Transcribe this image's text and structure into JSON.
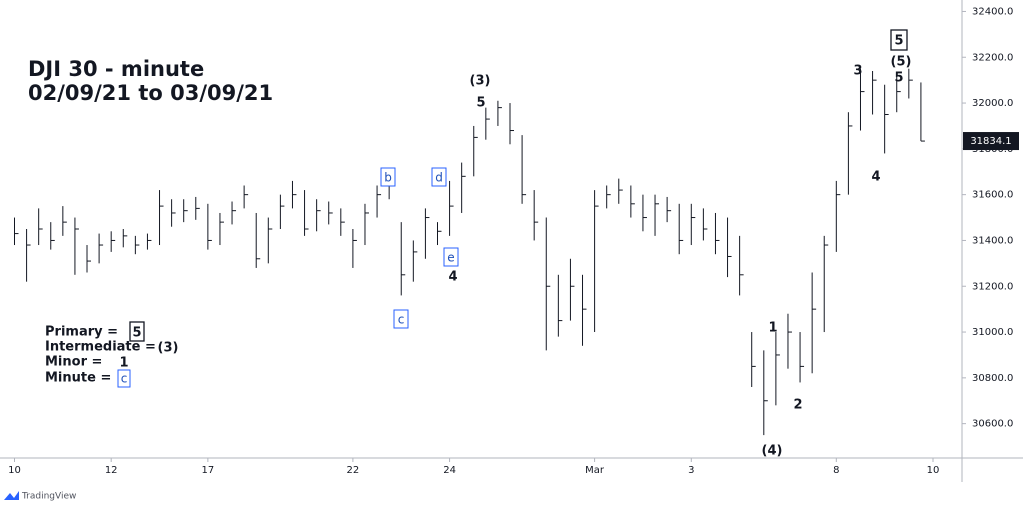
{
  "chart_data": {
    "type": "ohlc",
    "title": "DJI 30 - minute",
    "subtitle": "02/09/21 to 03/09/21",
    "color": "#131722",
    "x": [
      0,
      0.25,
      0.5,
      0.75,
      1,
      1.25,
      1.5,
      1.75,
      2,
      2.25,
      2.5,
      2.75,
      3,
      3.25,
      3.5,
      3.75,
      4,
      4.25,
      4.5,
      4.75,
      5,
      5.25,
      5.5,
      5.75,
      6,
      6.25,
      6.5,
      6.75,
      7,
      7.25,
      7.5,
      7.75,
      8,
      8.25,
      8.5,
      8.75,
      9,
      9.25,
      9.5,
      9.75,
      10,
      10.25,
      10.5,
      10.75,
      11,
      11.25,
      11.5,
      11.75,
      12,
      12.25,
      12.5,
      12.75,
      13,
      13.25,
      13.5,
      13.75,
      14,
      14.25,
      14.5,
      14.75,
      15,
      15.25,
      15.5,
      15.75,
      16,
      16.25,
      16.5,
      16.75,
      17,
      17.25,
      17.5,
      17.75,
      18,
      18.25,
      18.5,
      18.75
    ],
    "high": [
      31500,
      31450,
      31540,
      31480,
      31550,
      31500,
      31380,
      31430,
      31440,
      31450,
      31420,
      31430,
      31620,
      31580,
      31580,
      31590,
      31560,
      31520,
      31570,
      31640,
      31520,
      31500,
      31600,
      31660,
      31620,
      31580,
      31570,
      31540,
      31450,
      31560,
      31640,
      31660,
      31480,
      31400,
      31540,
      31480,
      31660,
      31740,
      31900,
      31980,
      32010,
      32000,
      31860,
      31620,
      31500,
      31250,
      31320,
      31250,
      31620,
      31640,
      31670,
      31640,
      31600,
      31600,
      31590,
      31560,
      31560,
      31540,
      31520,
      31500,
      31420,
      31000,
      30920,
      31000,
      31080,
      31000,
      31260,
      31420,
      31660,
      31960,
      32150,
      32140,
      32080,
      32130,
      32150,
      32090
    ],
    "low": [
      31380,
      31220,
      31380,
      31360,
      31420,
      31250,
      31260,
      31300,
      31350,
      31370,
      31340,
      31360,
      31380,
      31460,
      31480,
      31490,
      31360,
      31380,
      31470,
      31540,
      31280,
      31300,
      31450,
      31540,
      31420,
      31440,
      31470,
      31420,
      31280,
      31380,
      31500,
      31580,
      31160,
      31220,
      31320,
      31380,
      31420,
      31520,
      31680,
      31840,
      31900,
      31820,
      31560,
      31400,
      30920,
      30980,
      31050,
      30940,
      31000,
      31540,
      31560,
      31500,
      31440,
      31420,
      31480,
      31340,
      31380,
      31400,
      31340,
      31240,
      31160,
      30760,
      30550,
      30680,
      30840,
      30780,
      30820,
      31000,
      31350,
      31600,
      31880,
      31950,
      31780,
      31960,
      32020,
      31834
    ],
    "close": [
      31430,
      31380,
      31450,
      31400,
      31480,
      31450,
      31310,
      31380,
      31400,
      31420,
      31380,
      31400,
      31550,
      31520,
      31530,
      31540,
      31400,
      31480,
      31530,
      31600,
      31320,
      31450,
      31550,
      31600,
      31450,
      31530,
      31520,
      31480,
      31400,
      31520,
      31600,
      31640,
      31250,
      31350,
      31500,
      31440,
      31550,
      31680,
      31850,
      31930,
      31980,
      31880,
      31600,
      31480,
      31200,
      31050,
      31200,
      31100,
      31550,
      31600,
      31620,
      31560,
      31500,
      31560,
      31530,
      31400,
      31500,
      31450,
      31400,
      31330,
      31250,
      30850,
      30700,
      30900,
      31000,
      30850,
      31100,
      31380,
      31600,
      31900,
      32050,
      32100,
      31950,
      32050,
      32100,
      31834
    ],
    "xlim": [
      -0.3,
      19.6
    ],
    "xticks": [
      {
        "value": 0,
        "label": "10"
      },
      {
        "value": 2,
        "label": "12"
      },
      {
        "value": 4,
        "label": "17"
      },
      {
        "value": 7,
        "label": "22"
      },
      {
        "value": 9,
        "label": "24"
      },
      {
        "value": 12,
        "label": "Mar"
      },
      {
        "value": 14,
        "label": "3"
      },
      {
        "value": 17,
        "label": "8"
      },
      {
        "value": 19,
        "label": "10"
      }
    ],
    "ylim": [
      30450,
      32450
    ],
    "yticks": [
      {
        "value": 30600,
        "label": "30600.0"
      },
      {
        "value": 30800,
        "label": "30800.0"
      },
      {
        "value": 31000,
        "label": "31000.0"
      },
      {
        "value": 31200,
        "label": "31200.0"
      },
      {
        "value": 31400,
        "label": "31400.0"
      },
      {
        "value": 31600,
        "label": "31600.0"
      },
      {
        "value": 31800,
        "label": "31800.0"
      },
      {
        "value": 32000,
        "label": "32000.0"
      },
      {
        "value": 32200,
        "label": "32200.0"
      },
      {
        "value": 32400,
        "label": "32400.0"
      }
    ],
    "last_price": 31834.1,
    "annotations": [
      "5",
      "(5)",
      "5",
      "3",
      "4",
      "(3)",
      "5",
      "b",
      "d",
      "e",
      "4",
      "c",
      "1",
      "2",
      "(4)"
    ],
    "wave_degrees": [
      {
        "label": "Primary =",
        "symbol": "5"
      },
      {
        "label": "Intermediate =",
        "symbol": "(3)"
      },
      {
        "label": "Minor =",
        "symbol": "1"
      },
      {
        "label": "Minute =",
        "symbol": "c"
      }
    ],
    "source": "TradingView"
  }
}
